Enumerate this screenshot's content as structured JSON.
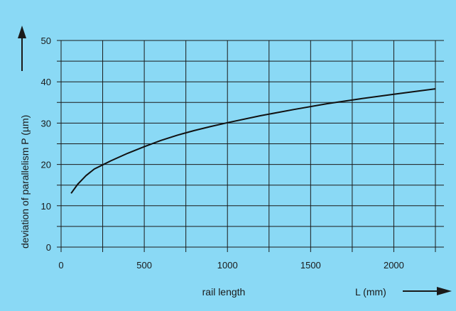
{
  "colors": {
    "background": "#8ad9f5",
    "grid": "#1a1a1a",
    "curve": "#111111",
    "text": "#1a1a1a"
  },
  "chart_data": {
    "type": "line",
    "title": "",
    "xlabel": "rail length",
    "xunit": "L (mm)",
    "ylabel": "deviation of parallelism  P  (µm)",
    "xlim": [
      0,
      2250
    ],
    "ylim": [
      0,
      50
    ],
    "x_ticks": [
      0,
      500,
      1000,
      1500,
      2000
    ],
    "y_ticks": [
      0,
      10,
      20,
      30,
      40,
      50
    ],
    "grid": true,
    "legend": "none",
    "series": [
      {
        "x": [
          60,
          100,
          150,
          200,
          250,
          300,
          400,
          500,
          600,
          700,
          800,
          900,
          1000,
          1200,
          1400,
          1600,
          1800,
          2000,
          2250
        ],
        "y": [
          13,
          15.2,
          17.3,
          18.9,
          19.9,
          20.9,
          22.7,
          24.3,
          25.8,
          27.1,
          28.2,
          29.2,
          30.1,
          31.8,
          33.3,
          34.7,
          35.9,
          37.0,
          38.3
        ]
      }
    ]
  }
}
